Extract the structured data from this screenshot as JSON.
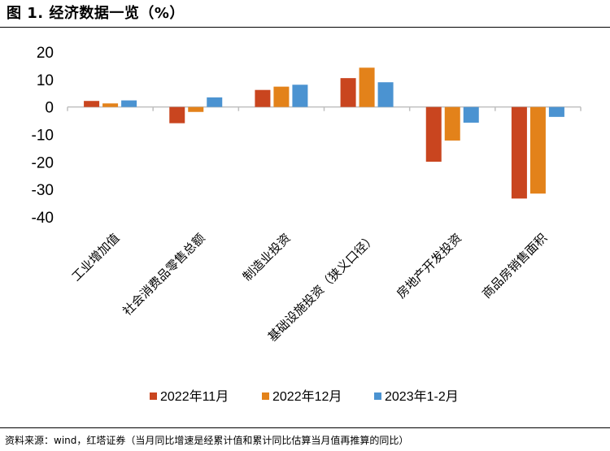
{
  "figure": {
    "title": "图 1. 经济数据一览（%）",
    "source": "资料来源：wind，红塔证券（当月同比增速是经累计值和累计同比估算当月值再推算的同比）"
  },
  "colors": {
    "series": [
      "#C9451F",
      "#E3821A",
      "#4B93D1"
    ],
    "axis": "#BFBFBF"
  },
  "chart_data": {
    "type": "bar",
    "title": "",
    "xlabel": "",
    "ylabel": "",
    "ylim": [
      -40,
      20
    ],
    "yticks": [
      20,
      10,
      0,
      -10,
      -20,
      -30,
      -40
    ],
    "grid": false,
    "legend_position": "bottom",
    "categories": [
      "工业增加值",
      "社会消费品零售总额",
      "制造业投资",
      "基础设施投资（狭义口径）",
      "房地产开发投资",
      "商品房销售面积"
    ],
    "series": [
      {
        "name": "2022年11月",
        "values": [
          2.2,
          -5.9,
          6.2,
          10.5,
          -19.9,
          -33.3
        ]
      },
      {
        "name": "2022年12月",
        "values": [
          1.3,
          -1.8,
          7.4,
          14.3,
          -12.2,
          -31.5
        ]
      },
      {
        "name": "2023年1-2月",
        "values": [
          2.4,
          3.5,
          8.1,
          9.0,
          -5.7,
          -3.6
        ]
      }
    ]
  }
}
